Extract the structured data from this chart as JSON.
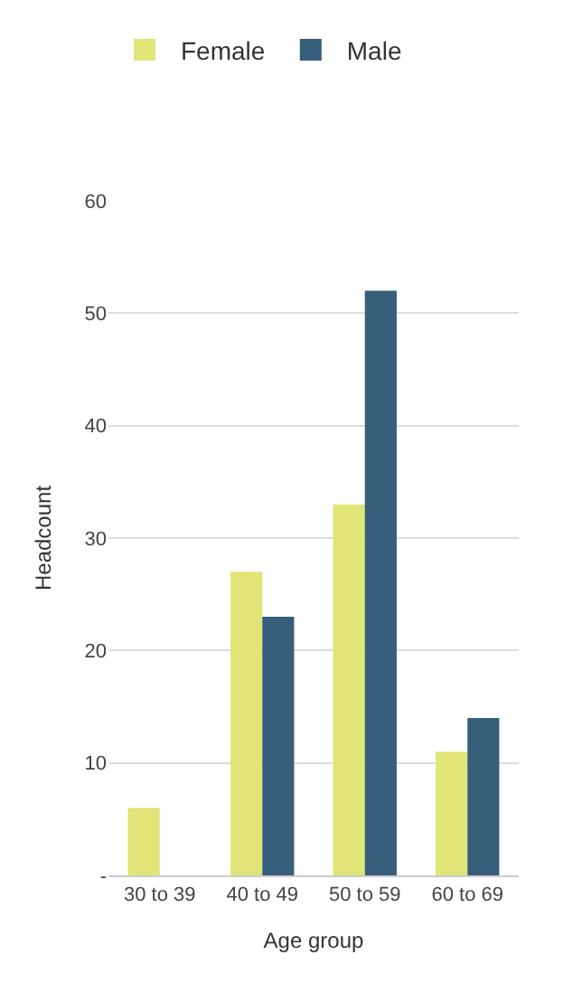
{
  "chart_data": {
    "type": "bar",
    "xlabel": "Age group",
    "ylabel": "Headcount",
    "categories": [
      "30 to 39",
      "40 to 49",
      "50 to 59",
      "60 to 69"
    ],
    "series": [
      {
        "name": "Female",
        "color": "#e1e476",
        "values": [
          6,
          27,
          33,
          11
        ]
      },
      {
        "name": "Male",
        "color": "#375e7a",
        "values": [
          null,
          23,
          52,
          14
        ]
      }
    ],
    "ylim": [
      0,
      60
    ],
    "yticks": [
      {
        "value": 0,
        "label": "-"
      },
      10,
      20,
      30,
      40,
      50,
      60
    ],
    "grid": "y",
    "legend": "top left"
  }
}
